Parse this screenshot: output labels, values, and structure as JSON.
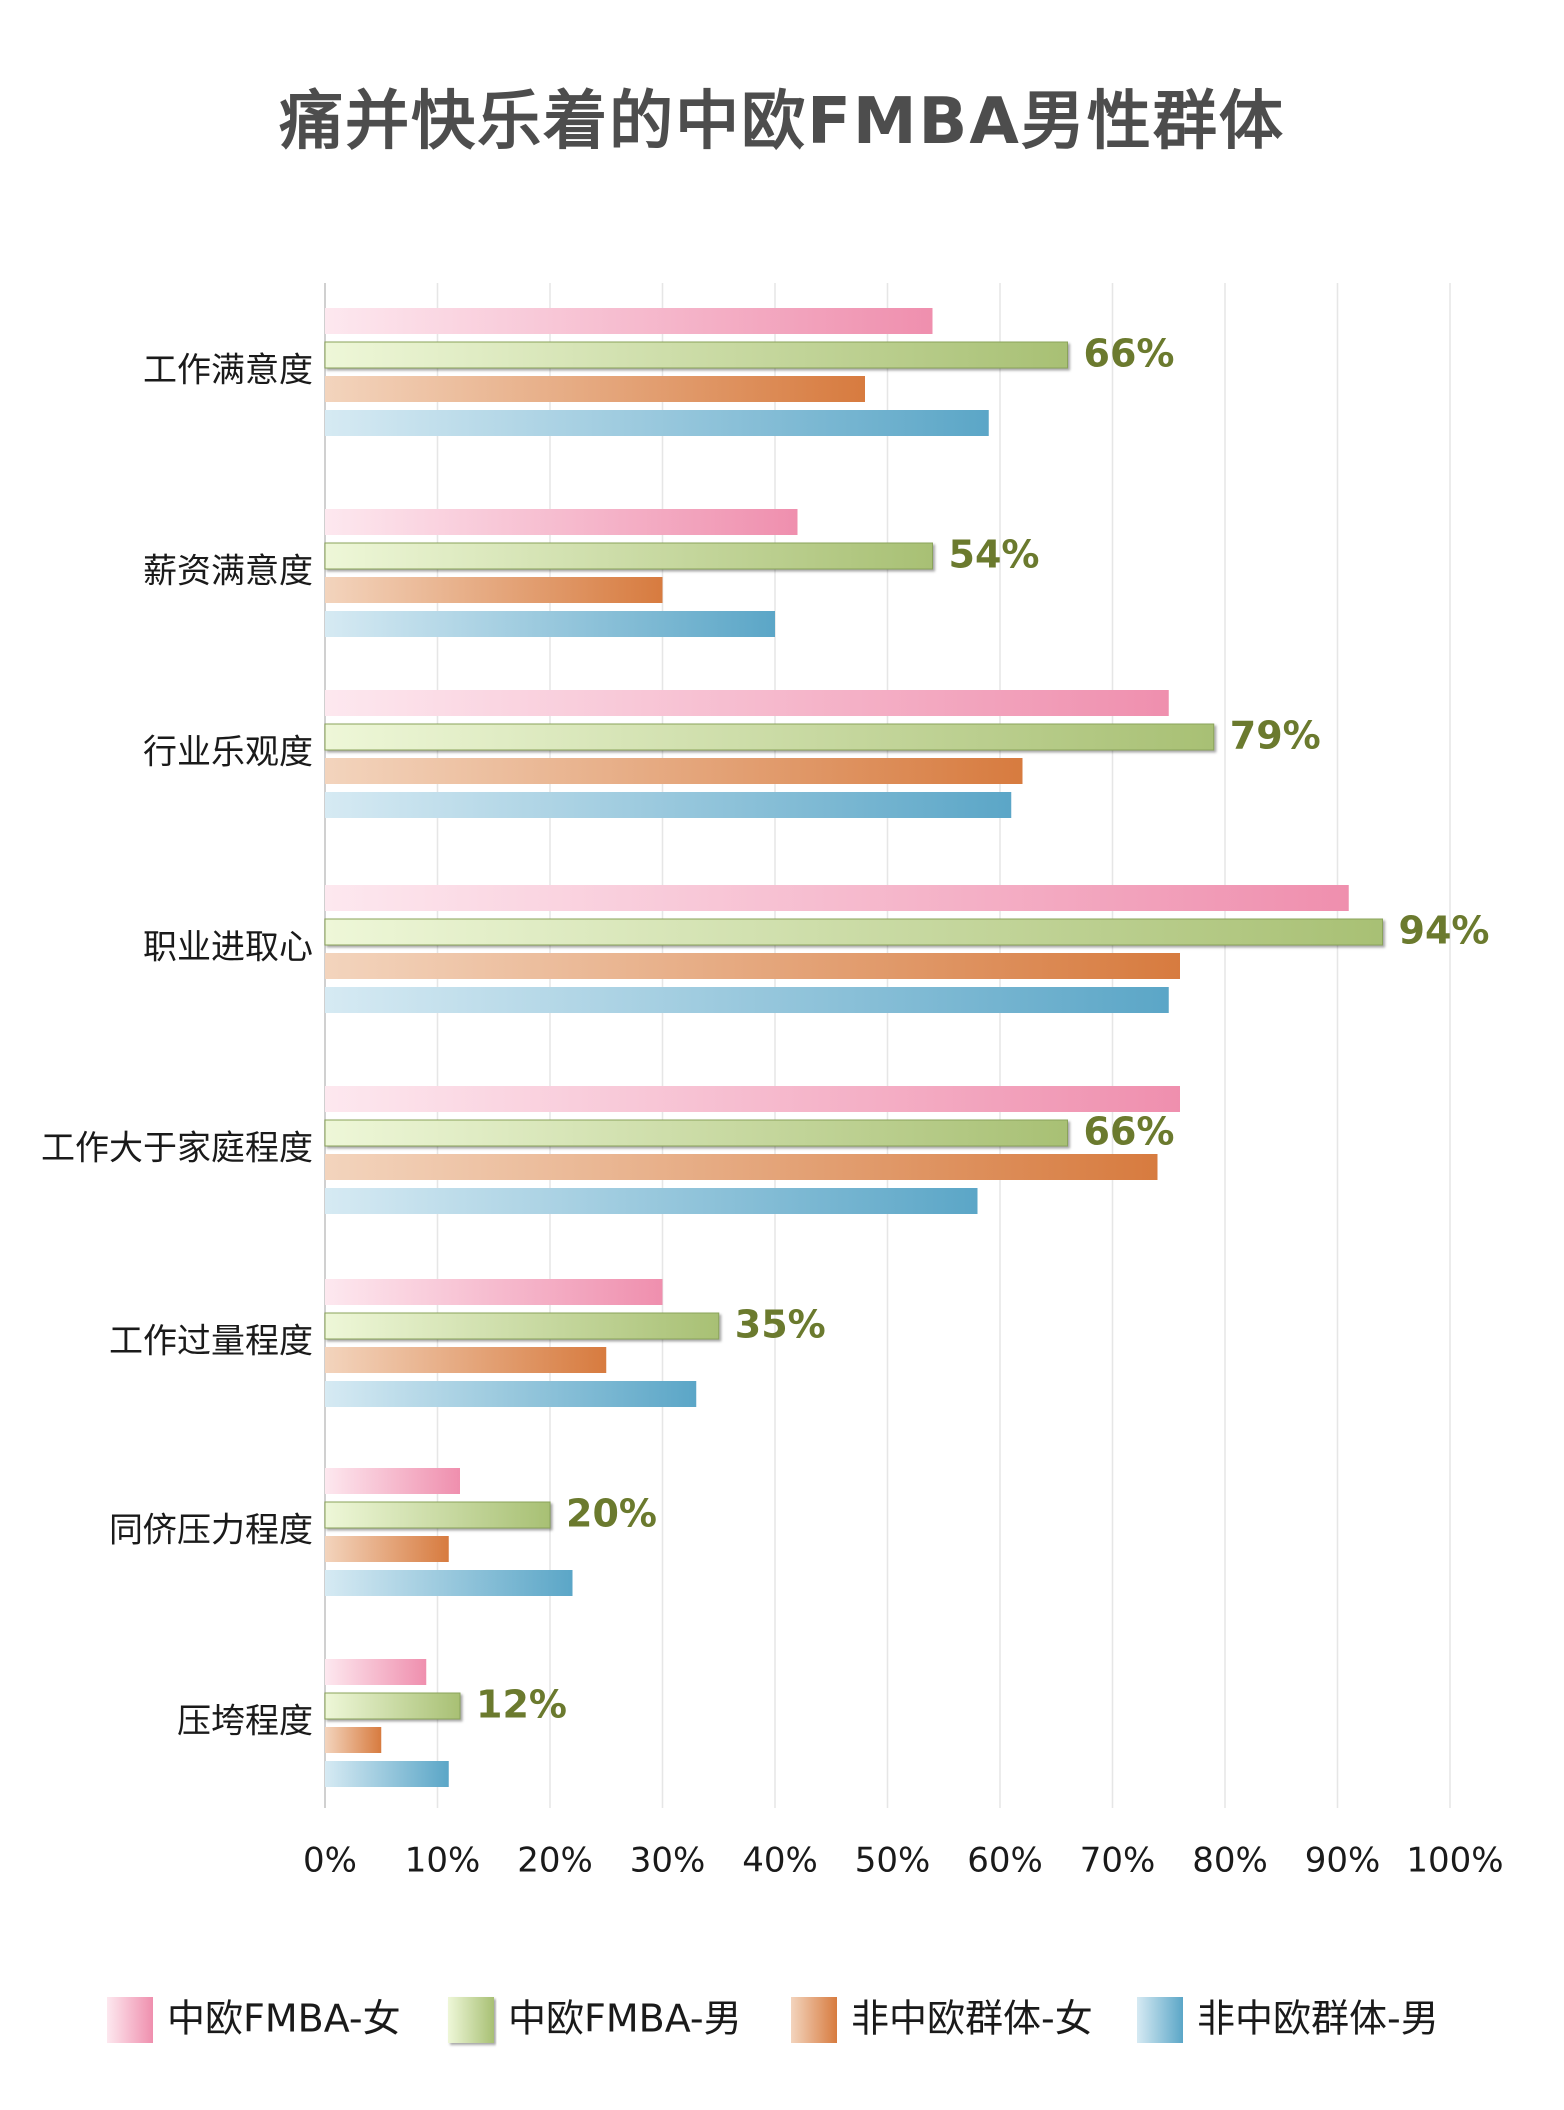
{
  "chart_data": {
    "type": "bar",
    "orientation": "horizontal",
    "title": "痛并快乐着的中欧FMBA男性群体",
    "categories": [
      "工作满意度",
      "薪资满意度",
      "行业乐观度",
      "职业进取心",
      "工作大于家庭程度",
      "工作过量程度",
      "同侪压力程度",
      "压垮程度"
    ],
    "series": [
      {
        "name": "中欧FMBA-女",
        "values": [
          54,
          42,
          75,
          91,
          76,
          30,
          12,
          9
        ],
        "color_start": "#fde8ef",
        "color_end": "#ef8fae"
      },
      {
        "name": "中欧FMBA-男",
        "values": [
          66,
          54,
          79,
          94,
          66,
          35,
          20,
          12
        ],
        "color_start": "#eef7d8",
        "color_end": "#a8c074"
      },
      {
        "name": "非中欧群体-女",
        "values": [
          48,
          30,
          62,
          76,
          74,
          25,
          11,
          5
        ],
        "color_start": "#f3d4bd",
        "color_end": "#d77b3f"
      },
      {
        "name": "非中欧群体-男",
        "values": [
          59,
          40,
          61,
          75,
          58,
          33,
          22,
          11
        ],
        "color_start": "#d6eaf3",
        "color_end": "#5ba6c7"
      }
    ],
    "data_labels": [
      "66%",
      "54%",
      "79%",
      "94%",
      "66%",
      "35%",
      "20%",
      "12%"
    ],
    "labeled_series": "中欧FMBA-男",
    "xlim": [
      0,
      100
    ],
    "x_ticks": [
      "0%",
      "10%",
      "20%",
      "30%",
      "40%",
      "50%",
      "60%",
      "70%",
      "80%",
      "90%",
      "100%"
    ],
    "grid": true,
    "legend_position": "bottom",
    "label_color": "#6b7a2e"
  }
}
